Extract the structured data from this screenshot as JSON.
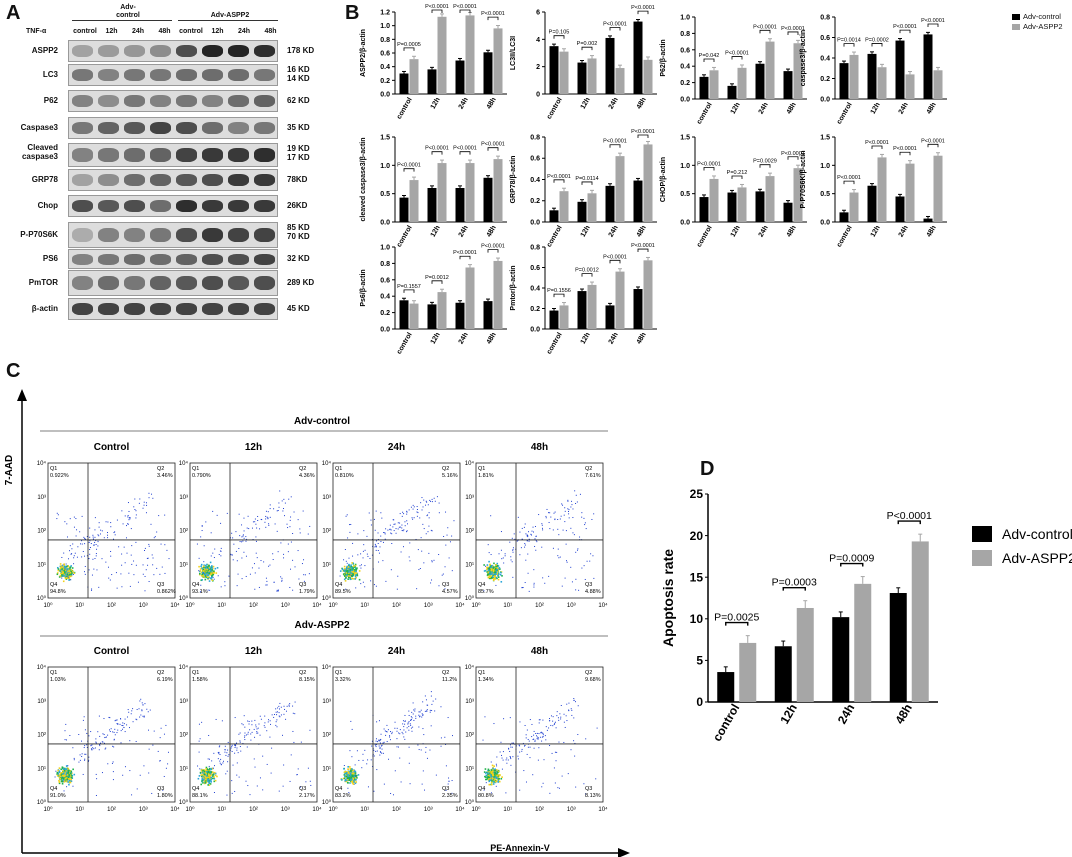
{
  "panels": {
    "a": "A",
    "b": "B",
    "c": "C",
    "d": "D"
  },
  "western_blot": {
    "tnf_label": "TNF-α",
    "group1": "Adv-\ncontrol",
    "group2": "Adv-ASPP2",
    "timepoints": [
      "control",
      "12h",
      "24h",
      "48h",
      "control",
      "12h",
      "24h",
      "48h"
    ],
    "rows": [
      {
        "name": "ASPP2",
        "size": "178 KD"
      },
      {
        "name": "LC3",
        "size": "16 KD\n14 KD"
      },
      {
        "name": "P62",
        "size": "62 KD"
      },
      {
        "name": "Caspase3",
        "size": "35 KD"
      },
      {
        "name": "Cleaved\ncaspase3",
        "size": "19 KD\n17 KD"
      },
      {
        "name": "GRP78",
        "size": "78KD"
      },
      {
        "name": "Chop",
        "size": "26KD"
      },
      {
        "name": "P-P70S6K",
        "size": "85 KD\n70 KD"
      },
      {
        "name": "PS6",
        "size": "32 KD"
      },
      {
        "name": "PmTOR",
        "size": "289 KD"
      },
      {
        "name": "β-actin",
        "size": "45 KD"
      }
    ],
    "band_intensity": [
      [
        0.35,
        0.38,
        0.4,
        0.45,
        0.75,
        0.95,
        0.95,
        0.9
      ],
      [
        0.55,
        0.5,
        0.55,
        0.55,
        0.6,
        0.6,
        0.6,
        0.55
      ],
      [
        0.5,
        0.45,
        0.55,
        0.5,
        0.55,
        0.5,
        0.6,
        0.65
      ],
      [
        0.55,
        0.65,
        0.7,
        0.8,
        0.75,
        0.6,
        0.5,
        0.55
      ],
      [
        0.5,
        0.55,
        0.6,
        0.65,
        0.8,
        0.85,
        0.85,
        0.9
      ],
      [
        0.35,
        0.45,
        0.6,
        0.65,
        0.7,
        0.75,
        0.85,
        0.85
      ],
      [
        0.75,
        0.7,
        0.75,
        0.6,
        0.9,
        0.85,
        0.85,
        0.85
      ],
      [
        0.3,
        0.5,
        0.5,
        0.55,
        0.75,
        0.85,
        0.8,
        0.8
      ],
      [
        0.5,
        0.55,
        0.6,
        0.6,
        0.65,
        0.75,
        0.75,
        0.8
      ],
      [
        0.5,
        0.6,
        0.55,
        0.65,
        0.7,
        0.75,
        0.7,
        0.75
      ],
      [
        0.8,
        0.8,
        0.8,
        0.8,
        0.8,
        0.8,
        0.8,
        0.8
      ]
    ]
  },
  "legend_b": {
    "s1": "Adv-control",
    "s2": "Adv-ASPP2"
  },
  "chart_data": [
    {
      "type": "bar",
      "id": "aspp2",
      "ylabel": "ASPP2/β-actin",
      "categories": [
        "control",
        "12h",
        "24h",
        "48h"
      ],
      "ylim": [
        0,
        1.2
      ],
      "yticks": [
        "0.0",
        "0.2",
        "0.4",
        "0.6",
        "0.8",
        "1.0",
        "1.2"
      ],
      "series": [
        {
          "name": "Adv-control",
          "values": [
            0.3,
            0.36,
            0.49,
            0.61
          ]
        },
        {
          "name": "Adv-ASPP2",
          "values": [
            0.51,
            1.13,
            1.15,
            0.96
          ]
        }
      ],
      "pvalues": [
        "P=0.0005",
        "P<0.0001",
        "P<0.0001",
        "P<0.0001"
      ]
    },
    {
      "type": "bar",
      "id": "lc3",
      "ylabel": "LC3II/LC3I",
      "categories": [
        "control",
        "12h",
        "24h",
        "48h"
      ],
      "ylim": [
        0,
        6
      ],
      "yticks": [
        "0",
        "2",
        "4",
        "6"
      ],
      "series": [
        {
          "name": "Adv-control",
          "values": [
            3.5,
            2.3,
            4.1,
            5.3
          ]
        },
        {
          "name": "Adv-ASPP2",
          "values": [
            3.1,
            2.6,
            1.9,
            2.5
          ]
        }
      ],
      "pvalues": [
        "P=0.105",
        "P=0.002",
        "P<0.0001",
        "P<0.0001"
      ]
    },
    {
      "type": "bar",
      "id": "p62",
      "ylabel": "P62/β-actin",
      "categories": [
        "control",
        "12h",
        "24h",
        "48h"
      ],
      "ylim": [
        0,
        1.0
      ],
      "yticks": [
        "0.0",
        "0.2",
        "0.4",
        "0.6",
        "0.8",
        "1.0"
      ],
      "series": [
        {
          "name": "Adv-control",
          "values": [
            0.27,
            0.16,
            0.43,
            0.34
          ]
        },
        {
          "name": "Adv-ASPP2",
          "values": [
            0.35,
            0.38,
            0.7,
            0.68
          ]
        }
      ],
      "pvalues": [
        "P=0.042",
        "P<0.0001",
        "P<0.0001",
        "P<0.0001"
      ]
    },
    {
      "type": "bar",
      "id": "caspase3",
      "ylabel": "caspase3/β-actin",
      "categories": [
        "control",
        "12h",
        "24h",
        "48h"
      ],
      "ylim": [
        0,
        0.8
      ],
      "yticks": [
        "0.0",
        "0.2",
        "0.4",
        "0.6",
        "0.8"
      ],
      "series": [
        {
          "name": "Adv-control",
          "values": [
            0.35,
            0.44,
            0.57,
            0.63
          ]
        },
        {
          "name": "Adv-ASPP2",
          "values": [
            0.43,
            0.31,
            0.24,
            0.28
          ]
        }
      ],
      "pvalues": [
        "P=0.0014",
        "P=0.0002",
        "P<0.0001",
        "P<0.0001"
      ]
    },
    {
      "type": "bar",
      "id": "cleaved",
      "ylabel": "cleaved caspase3/β-actin",
      "categories": [
        "control",
        "12h",
        "24h",
        "48h"
      ],
      "ylim": [
        0,
        1.5
      ],
      "yticks": [
        "0.0",
        "0.5",
        "1.0",
        "1.5"
      ],
      "series": [
        {
          "name": "Adv-control",
          "values": [
            0.43,
            0.6,
            0.6,
            0.78
          ]
        },
        {
          "name": "Adv-ASPP2",
          "values": [
            0.74,
            1.04,
            1.04,
            1.11
          ]
        }
      ],
      "pvalues": [
        "P<0.0001",
        "P<0.0001",
        "P<0.0001",
        "P<0.0001"
      ]
    },
    {
      "type": "bar",
      "id": "grp78",
      "ylabel": "GRP78/β-actin",
      "categories": [
        "control",
        "12h",
        "24h",
        "48h"
      ],
      "ylim": [
        0,
        0.8
      ],
      "yticks": [
        "0.0",
        "0.2",
        "0.4",
        "0.6",
        "0.8"
      ],
      "series": [
        {
          "name": "Adv-control",
          "values": [
            0.11,
            0.19,
            0.34,
            0.39
          ]
        },
        {
          "name": "Adv-ASPP2",
          "values": [
            0.29,
            0.27,
            0.62,
            0.73
          ]
        }
      ],
      "pvalues": [
        "P<0.0001",
        "P=0.0114",
        "P<0.0001",
        "P<0.0001"
      ]
    },
    {
      "type": "bar",
      "id": "chop",
      "ylabel": "CHOP/β-actin",
      "categories": [
        "control",
        "12h",
        "24h",
        "48h"
      ],
      "ylim": [
        0,
        1.5
      ],
      "yticks": [
        "0.0",
        "0.5",
        "1.0",
        "1.5"
      ],
      "series": [
        {
          "name": "Adv-control",
          "values": [
            0.44,
            0.52,
            0.54,
            0.34
          ]
        },
        {
          "name": "Adv-ASPP2",
          "values": [
            0.76,
            0.61,
            0.81,
            0.95
          ]
        }
      ],
      "pvalues": [
        "P<0.0001",
        "P=0.212",
        "P=0.0029",
        "P<0.0001"
      ]
    },
    {
      "type": "bar",
      "id": "pp70s6k",
      "ylabel": "P-P70S6K/β-actin",
      "categories": [
        "control",
        "12h",
        "24h",
        "48h"
      ],
      "ylim": [
        0,
        1.5
      ],
      "yticks": [
        "0.0",
        "0.5",
        "1.0",
        "1.5"
      ],
      "series": [
        {
          "name": "Adv-control",
          "values": [
            0.17,
            0.64,
            0.45,
            0.06
          ]
        },
        {
          "name": "Adv-ASPP2",
          "values": [
            0.52,
            1.14,
            1.03,
            1.17
          ]
        }
      ],
      "pvalues": [
        "P<0.0001",
        "P<0.0001",
        "P<0.0001",
        "P<0.0001"
      ]
    },
    {
      "type": "bar",
      "id": "ps6",
      "ylabel": "Ps6/β-actin",
      "categories": [
        "control",
        "12h",
        "24h",
        "48h"
      ],
      "ylim": [
        0,
        1.0
      ],
      "yticks": [
        "0.0",
        "0.2",
        "0.4",
        "0.6",
        "0.8",
        "1.0"
      ],
      "series": [
        {
          "name": "Adv-control",
          "values": [
            0.35,
            0.3,
            0.32,
            0.34
          ]
        },
        {
          "name": "Adv-ASPP2",
          "values": [
            0.31,
            0.45,
            0.75,
            0.83
          ]
        }
      ],
      "pvalues": [
        "P=0.1557",
        "P=0.0012",
        "P<0.0001",
        "P<0.0001"
      ]
    },
    {
      "type": "bar",
      "id": "pmtor",
      "ylabel": "Pmtor/β-actin",
      "categories": [
        "control",
        "12h",
        "24h",
        "48h"
      ],
      "ylim": [
        0,
        0.8
      ],
      "yticks": [
        "0.0",
        "0.2",
        "0.4",
        "0.6",
        "0.8"
      ],
      "series": [
        {
          "name": "Adv-control",
          "values": [
            0.18,
            0.37,
            0.23,
            0.39
          ]
        },
        {
          "name": "Adv-ASPP2",
          "values": [
            0.23,
            0.43,
            0.56,
            0.67
          ]
        }
      ],
      "pvalues": [
        "P=0.1556",
        "P=0.0012",
        "P<0.0001",
        "P<0.0001"
      ]
    },
    {
      "type": "bar",
      "id": "apoptosis",
      "ylabel": "Apoptosis rate",
      "categories": [
        "control",
        "12h",
        "24h",
        "48h"
      ],
      "ylim": [
        0,
        25
      ],
      "yticks": [
        "0",
        "5",
        "10",
        "15",
        "20",
        "25"
      ],
      "series": [
        {
          "name": "Adv-control",
          "values": [
            3.6,
            6.7,
            10.2,
            13.1
          ]
        },
        {
          "name": "Adv-ASPP2",
          "values": [
            7.1,
            11.3,
            14.2,
            19.3
          ]
        }
      ],
      "pvalues": [
        "P=0.0025",
        "P=0.0003",
        "P=0.0009",
        "P<0.0001"
      ]
    }
  ],
  "flow": {
    "yaxis": "7-AAD",
    "xaxis": "PE-Annexin-V",
    "group1": "Adv-control",
    "group2": "Adv-ASPP2",
    "titles": [
      "Control",
      "12h",
      "24h",
      "48h"
    ],
    "ticks": [
      "10⁰",
      "10¹",
      "10²",
      "10³",
      "10⁴"
    ],
    "plots": [
      [
        [
          "Q1",
          "0.922%"
        ],
        [
          "Q2",
          "3.46%"
        ],
        [
          "Q3",
          "0.862%"
        ],
        [
          "Q4",
          "94.8%"
        ]
      ],
      [
        [
          "Q1",
          "0.790%"
        ],
        [
          "Q2",
          "4.36%"
        ],
        [
          "Q3",
          "1.79%"
        ],
        [
          "Q4",
          "93.1%"
        ]
      ],
      [
        [
          "Q1",
          "0.810%"
        ],
        [
          "Q2",
          "5.16%"
        ],
        [
          "Q3",
          "4.57%"
        ],
        [
          "Q4",
          "89.5%"
        ]
      ],
      [
        [
          "Q1",
          "1.81%"
        ],
        [
          "Q2",
          "7.61%"
        ],
        [
          "Q3",
          "4.88%"
        ],
        [
          "Q4",
          "85.7%"
        ]
      ],
      [
        [
          "Q1",
          "1.03%"
        ],
        [
          "Q2",
          "6.19%"
        ],
        [
          "Q3",
          "1.80%"
        ],
        [
          "Q4",
          "91.0%"
        ]
      ],
      [
        [
          "Q1",
          "1.58%"
        ],
        [
          "Q2",
          "8.15%"
        ],
        [
          "Q3",
          "2.17%"
        ],
        [
          "Q4",
          "88.1%"
        ]
      ],
      [
        [
          "Q1",
          "3.32%"
        ],
        [
          "Q2",
          "11.2%"
        ],
        [
          "Q3",
          "2.35%"
        ],
        [
          "Q4",
          "83.2%"
        ]
      ],
      [
        [
          "Q1",
          "1.34%"
        ],
        [
          "Q2",
          "9.68%"
        ],
        [
          "Q3",
          "8.13%"
        ],
        [
          "Q4",
          "80.8%"
        ]
      ]
    ]
  },
  "legend_d": {
    "s1": "Adv-control",
    "s2": "Adv-ASPP2"
  },
  "colors": {
    "control": "#000000",
    "aspp2": "#a6a6a6"
  }
}
